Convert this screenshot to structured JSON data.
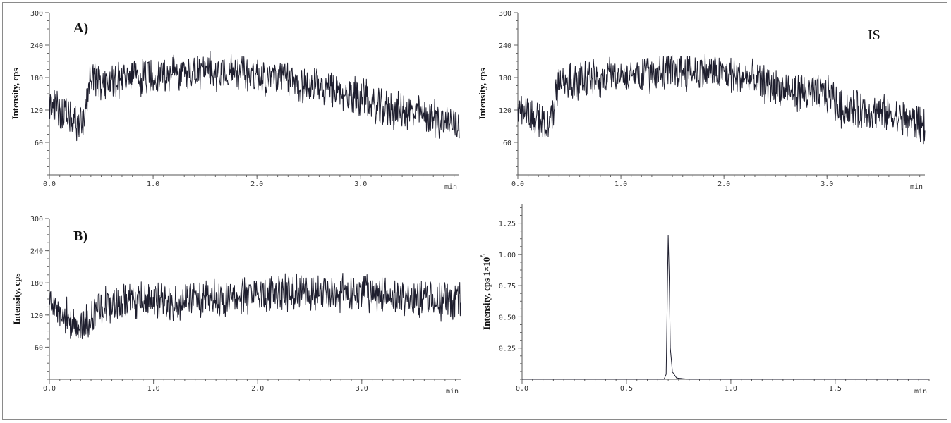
{
  "chart_data": [
    {
      "id": "topleft",
      "type": "line",
      "panel_label": "A)",
      "annotation": "",
      "ylabel": "Intensity, cps",
      "xunit": "min",
      "xlim": [
        0.0,
        3.95
      ],
      "ylim": [
        0,
        300
      ],
      "xticks": [
        0.0,
        1.0,
        2.0,
        3.0
      ],
      "xtick_labels": [
        "0.0",
        "1.0",
        "2.0",
        "3.0"
      ],
      "yticks": [
        60,
        120,
        180,
        240,
        300
      ],
      "ytick_labels": [
        "60",
        "120",
        "180",
        "240",
        "300"
      ],
      "grid": false,
      "series": [
        {
          "x": [
            0.0,
            0.1,
            0.2,
            0.3,
            0.35,
            0.4,
            0.45,
            0.5,
            0.6,
            0.7,
            0.8,
            1.0,
            1.2,
            1.4,
            1.6,
            1.8,
            2.0,
            2.2,
            2.4,
            2.6,
            2.8,
            3.0,
            3.05,
            3.1,
            3.2,
            3.4,
            3.6,
            3.8,
            3.95
          ],
          "y": [
            130,
            120,
            100,
            95,
            120,
            180,
            175,
            170,
            175,
            180,
            178,
            185,
            188,
            190,
            192,
            190,
            185,
            180,
            170,
            160,
            150,
            145,
            150,
            125,
            122,
            118,
            110,
            100,
            95
          ]
        }
      ]
    },
    {
      "id": "topright",
      "type": "line",
      "panel_label": "",
      "annotation": "IS",
      "ylabel": "Intensity, cps",
      "xunit": "min",
      "xlim": [
        0.0,
        3.95
      ],
      "ylim": [
        0,
        300
      ],
      "xticks": [
        0.0,
        1.0,
        2.0,
        3.0
      ],
      "xtick_labels": [
        "0.0",
        "1.0",
        "2.0",
        "3.0"
      ],
      "yticks": [
        60,
        120,
        180,
        240,
        300
      ],
      "ytick_labels": [
        "60",
        "120",
        "180",
        "240",
        "300"
      ],
      "grid": false,
      "series": [
        {
          "x": [
            0.0,
            0.1,
            0.2,
            0.3,
            0.35,
            0.4,
            0.45,
            0.5,
            0.6,
            0.7,
            0.8,
            1.0,
            1.2,
            1.4,
            1.6,
            1.8,
            2.0,
            2.2,
            2.4,
            2.6,
            2.8,
            3.0,
            3.05,
            3.1,
            3.2,
            3.4,
            3.6,
            3.8,
            3.95
          ],
          "y": [
            125,
            118,
            100,
            95,
            120,
            180,
            175,
            170,
            175,
            180,
            178,
            185,
            188,
            190,
            192,
            192,
            186,
            180,
            168,
            155,
            150,
            148,
            150,
            125,
            122,
            118,
            110,
            100,
            92
          ]
        }
      ]
    },
    {
      "id": "bottomleft",
      "type": "line",
      "panel_label": "B)",
      "annotation": "",
      "ylabel": "Intensity, cps",
      "xunit": "min",
      "xlim": [
        0.0,
        3.95
      ],
      "ylim": [
        0,
        300
      ],
      "xticks": [
        0.0,
        1.0,
        2.0,
        3.0
      ],
      "xtick_labels": [
        "0.0",
        "1.0",
        "2.0",
        "3.0"
      ],
      "yticks": [
        60,
        120,
        180,
        240,
        300
      ],
      "ytick_labels": [
        "60",
        "120",
        "180",
        "240",
        "300"
      ],
      "grid": false,
      "series": [
        {
          "x": [
            0.0,
            0.1,
            0.2,
            0.3,
            0.4,
            0.5,
            0.7,
            1.0,
            1.3,
            1.6,
            2.0,
            2.3,
            2.6,
            3.0,
            3.3,
            3.6,
            3.95
          ],
          "y": [
            140,
            135,
            105,
            100,
            115,
            140,
            142,
            145,
            148,
            150,
            158,
            165,
            162,
            160,
            155,
            150,
            145
          ]
        }
      ]
    },
    {
      "id": "bottomright",
      "type": "line",
      "panel_label": "",
      "annotation": "",
      "ylabel": "Intensity, cps 1×10",
      "ylabel_sup": "5",
      "xunit": "min",
      "xlim": [
        0.0,
        1.95
      ],
      "ylim": [
        0,
        1.4
      ],
      "xticks": [
        0.0,
        0.5,
        1.0,
        1.5
      ],
      "xtick_labels": [
        "0.0",
        "0.5",
        "1.0",
        "1.5"
      ],
      "yticks": [
        0.25,
        0.5,
        0.75,
        1.0,
        1.25
      ],
      "ytick_labels": [
        "0.25",
        "0.50",
        "0.75",
        "1.00",
        "1.25"
      ],
      "grid": false,
      "series": [
        {
          "x": [
            0.0,
            0.68,
            0.69,
            0.695,
            0.7,
            0.705,
            0.71,
            0.72,
            0.74,
            0.8,
            1.95
          ],
          "y": [
            0.0,
            0.0,
            0.04,
            0.6,
            1.15,
            0.8,
            0.25,
            0.06,
            0.01,
            0.0,
            0.0
          ]
        }
      ]
    }
  ]
}
